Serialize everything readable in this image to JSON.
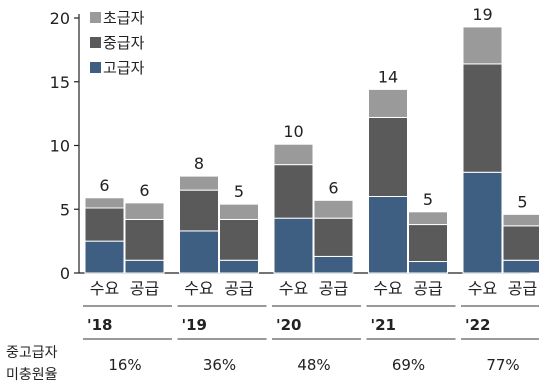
{
  "chart_data": {
    "type": "bar",
    "stacked": true,
    "ylim": [
      0,
      20
    ],
    "yticks": [
      "0",
      "5",
      "10",
      "15",
      "20"
    ],
    "legend": {
      "position": "top-left"
    },
    "series": [
      {
        "name": "초급자",
        "color": "#9a9a9a"
      },
      {
        "name": "중급자",
        "color": "#5a5a5a"
      },
      {
        "name": "고급자",
        "color": "#3e5f82"
      }
    ],
    "groups": [
      {
        "year": "'18",
        "ratio": "16%",
        "bars": [
          {
            "label": "수요",
            "total_label": "6",
            "values": [
              0.8,
              2.6,
              2.5
            ]
          },
          {
            "label": "공급",
            "total_label": "6",
            "values": [
              1.3,
              3.2,
              1.0
            ]
          }
        ]
      },
      {
        "year": "'19",
        "ratio": "36%",
        "bars": [
          {
            "label": "수요",
            "total_label": "8",
            "values": [
              1.1,
              3.2,
              3.3
            ]
          },
          {
            "label": "공급",
            "total_label": "5",
            "values": [
              1.2,
              3.2,
              1.0
            ]
          }
        ]
      },
      {
        "year": "'20",
        "ratio": "48%",
        "bars": [
          {
            "label": "수요",
            "total_label": "10",
            "values": [
              1.6,
              4.2,
              4.3
            ]
          },
          {
            "label": "공급",
            "total_label": "6",
            "values": [
              1.4,
              3.0,
              1.3
            ]
          }
        ]
      },
      {
        "year": "'21",
        "ratio": "69%",
        "bars": [
          {
            "label": "수요",
            "total_label": "14",
            "values": [
              2.2,
              6.2,
              6.0
            ]
          },
          {
            "label": "공급",
            "total_label": "5",
            "values": [
              1.0,
              2.9,
              0.9
            ]
          }
        ]
      },
      {
        "year": "'22",
        "ratio": "77%",
        "bars": [
          {
            "label": "수요",
            "total_label": "19",
            "values": [
              2.9,
              8.5,
              7.9
            ]
          },
          {
            "label": "공급",
            "total_label": "5",
            "values": [
              0.9,
              2.7,
              1.0
            ]
          }
        ]
      }
    ],
    "row_label_line1": "중고급자",
    "row_label_line2": "미충원율"
  }
}
